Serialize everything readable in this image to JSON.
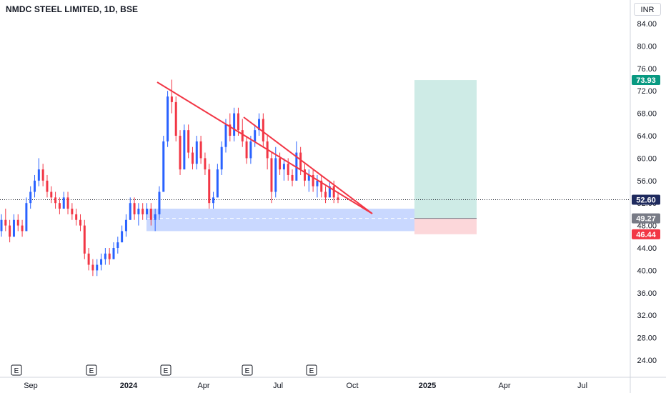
{
  "header": {
    "title": "NMDC STEEL LIMITED, 1D, BSE",
    "currency": "INR"
  },
  "chart_data": {
    "type": "candlestick",
    "title": "NMDC STEEL LIMITED, 1D, BSE",
    "ylim": [
      22,
      87
    ],
    "y_ticks": [
      "84.00",
      "80.00",
      "76.00",
      "72.00",
      "68.00",
      "64.00",
      "60.00",
      "56.00",
      "52.00",
      "48.00",
      "44.00",
      "40.00",
      "36.00",
      "32.00",
      "28.00",
      "24.00"
    ],
    "x_ticks": [
      "Sep",
      "2024",
      "Apr",
      "Jul",
      "Oct",
      "2025",
      "Apr",
      "Jul"
    ],
    "colors": {
      "up": "#2962ff",
      "down": "#f23645",
      "trendline": "#f23645",
      "zone": "#2962ff",
      "profit": "#089981",
      "loss": "#f23645"
    },
    "price_labels": {
      "target": "73.93",
      "last": "52.60",
      "entry": "49.27",
      "stop": "46.44"
    },
    "earnings_markers": [
      "E",
      "E",
      "E",
      "E",
      "E"
    ],
    "series": [
      {
        "o": 47,
        "h": 50,
        "l": 46,
        "c": 49
      },
      {
        "o": 49,
        "h": 51,
        "l": 47,
        "c": 48
      },
      {
        "o": 48,
        "h": 49,
        "l": 45,
        "c": 46
      },
      {
        "o": 46,
        "h": 50,
        "l": 46,
        "c": 49
      },
      {
        "o": 49,
        "h": 50,
        "l": 47,
        "c": 48
      },
      {
        "o": 48,
        "h": 49,
        "l": 46,
        "c": 47
      },
      {
        "o": 47,
        "h": 53,
        "l": 47,
        "c": 52
      },
      {
        "o": 52,
        "h": 55,
        "l": 51,
        "c": 54
      },
      {
        "o": 54,
        "h": 57,
        "l": 53,
        "c": 56
      },
      {
        "o": 56,
        "h": 60,
        "l": 55,
        "c": 58
      },
      {
        "o": 58,
        "h": 59,
        "l": 55,
        "c": 56
      },
      {
        "o": 56,
        "h": 57,
        "l": 53,
        "c": 54
      },
      {
        "o": 54,
        "h": 55,
        "l": 52,
        "c": 53
      },
      {
        "o": 53,
        "h": 54,
        "l": 51,
        "c": 52
      },
      {
        "o": 52,
        "h": 53,
        "l": 50,
        "c": 51
      },
      {
        "o": 51,
        "h": 54,
        "l": 51,
        "c": 53
      },
      {
        "o": 53,
        "h": 54,
        "l": 50,
        "c": 51
      },
      {
        "o": 51,
        "h": 52,
        "l": 49,
        "c": 50
      },
      {
        "o": 50,
        "h": 51,
        "l": 48,
        "c": 49
      },
      {
        "o": 49,
        "h": 50,
        "l": 47,
        "c": 48
      },
      {
        "o": 48,
        "h": 49,
        "l": 42,
        "c": 43
      },
      {
        "o": 43,
        "h": 44,
        "l": 40,
        "c": 41
      },
      {
        "o": 41,
        "h": 42,
        "l": 39,
        "c": 40
      },
      {
        "o": 40,
        "h": 42,
        "l": 39,
        "c": 41
      },
      {
        "o": 41,
        "h": 43,
        "l": 40,
        "c": 42
      },
      {
        "o": 42,
        "h": 44,
        "l": 41,
        "c": 43
      },
      {
        "o": 43,
        "h": 44,
        "l": 41,
        "c": 42
      },
      {
        "o": 42,
        "h": 45,
        "l": 42,
        "c": 44
      },
      {
        "o": 44,
        "h": 46,
        "l": 43,
        "c": 45
      },
      {
        "o": 45,
        "h": 48,
        "l": 45,
        "c": 47
      },
      {
        "o": 47,
        "h": 50,
        "l": 46,
        "c": 49
      },
      {
        "o": 49,
        "h": 53,
        "l": 49,
        "c": 52
      },
      {
        "o": 52,
        "h": 53,
        "l": 49,
        "c": 50
      },
      {
        "o": 50,
        "h": 52,
        "l": 48,
        "c": 51
      },
      {
        "o": 51,
        "h": 52,
        "l": 49,
        "c": 50
      },
      {
        "o": 50,
        "h": 52,
        "l": 49,
        "c": 51
      },
      {
        "o": 51,
        "h": 52,
        "l": 48,
        "c": 49
      },
      {
        "o": 49,
        "h": 51,
        "l": 47,
        "c": 50
      },
      {
        "o": 50,
        "h": 55,
        "l": 49,
        "c": 54
      },
      {
        "o": 54,
        "h": 64,
        "l": 54,
        "c": 63
      },
      {
        "o": 63,
        "h": 72,
        "l": 62,
        "c": 71
      },
      {
        "o": 71,
        "h": 74,
        "l": 68,
        "c": 70
      },
      {
        "o": 70,
        "h": 71,
        "l": 63,
        "c": 64
      },
      {
        "o": 64,
        "h": 65,
        "l": 57,
        "c": 58
      },
      {
        "o": 58,
        "h": 66,
        "l": 58,
        "c": 65
      },
      {
        "o": 65,
        "h": 66,
        "l": 60,
        "c": 61
      },
      {
        "o": 61,
        "h": 62,
        "l": 58,
        "c": 59
      },
      {
        "o": 59,
        "h": 64,
        "l": 58,
        "c": 63
      },
      {
        "o": 63,
        "h": 64,
        "l": 59,
        "c": 60
      },
      {
        "o": 60,
        "h": 61,
        "l": 57,
        "c": 58
      },
      {
        "o": 58,
        "h": 59,
        "l": 51,
        "c": 52
      },
      {
        "o": 52,
        "h": 54,
        "l": 51,
        "c": 53
      },
      {
        "o": 53,
        "h": 59,
        "l": 53,
        "c": 58
      },
      {
        "o": 58,
        "h": 63,
        "l": 57,
        "c": 62
      },
      {
        "o": 62,
        "h": 67,
        "l": 61,
        "c": 66
      },
      {
        "o": 66,
        "h": 68,
        "l": 63,
        "c": 64
      },
      {
        "o": 64,
        "h": 69,
        "l": 63,
        "c": 68
      },
      {
        "o": 68,
        "h": 69,
        "l": 64,
        "c": 65
      },
      {
        "o": 65,
        "h": 67,
        "l": 62,
        "c": 63
      },
      {
        "o": 63,
        "h": 64,
        "l": 59,
        "c": 60
      },
      {
        "o": 60,
        "h": 64,
        "l": 59,
        "c": 63
      },
      {
        "o": 63,
        "h": 66,
        "l": 62,
        "c": 65
      },
      {
        "o": 65,
        "h": 68,
        "l": 64,
        "c": 67
      },
      {
        "o": 67,
        "h": 68,
        "l": 62,
        "c": 63
      },
      {
        "o": 63,
        "h": 64,
        "l": 58,
        "c": 60
      },
      {
        "o": 60,
        "h": 61,
        "l": 52,
        "c": 54
      },
      {
        "o": 54,
        "h": 62,
        "l": 53,
        "c": 60
      },
      {
        "o": 60,
        "h": 61,
        "l": 57,
        "c": 58
      },
      {
        "o": 58,
        "h": 60,
        "l": 56,
        "c": 59
      },
      {
        "o": 59,
        "h": 60,
        "l": 56,
        "c": 57
      },
      {
        "o": 57,
        "h": 58,
        "l": 55,
        "c": 56
      },
      {
        "o": 56,
        "h": 63,
        "l": 56,
        "c": 61
      },
      {
        "o": 61,
        "h": 62,
        "l": 57,
        "c": 58
      },
      {
        "o": 58,
        "h": 59,
        "l": 55,
        "c": 56
      },
      {
        "o": 56,
        "h": 58,
        "l": 54,
        "c": 57
      },
      {
        "o": 57,
        "h": 58,
        "l": 54,
        "c": 55
      },
      {
        "o": 55,
        "h": 57,
        "l": 53,
        "c": 56
      },
      {
        "o": 56,
        "h": 57,
        "l": 53,
        "c": 54
      },
      {
        "o": 54,
        "h": 55,
        "l": 52,
        "c": 53
      },
      {
        "o": 53,
        "h": 56,
        "l": 53,
        "c": 55
      },
      {
        "o": 55,
        "h": 56,
        "l": 52,
        "c": 53
      },
      {
        "o": 53,
        "h": 54,
        "l": 52,
        "c": 52.6
      }
    ],
    "zone": {
      "y_top": 51,
      "y_mid": 49.27,
      "y_bottom": 47
    },
    "position": {
      "entry": 49.27,
      "target": 73.93,
      "stop": 46.44
    }
  }
}
